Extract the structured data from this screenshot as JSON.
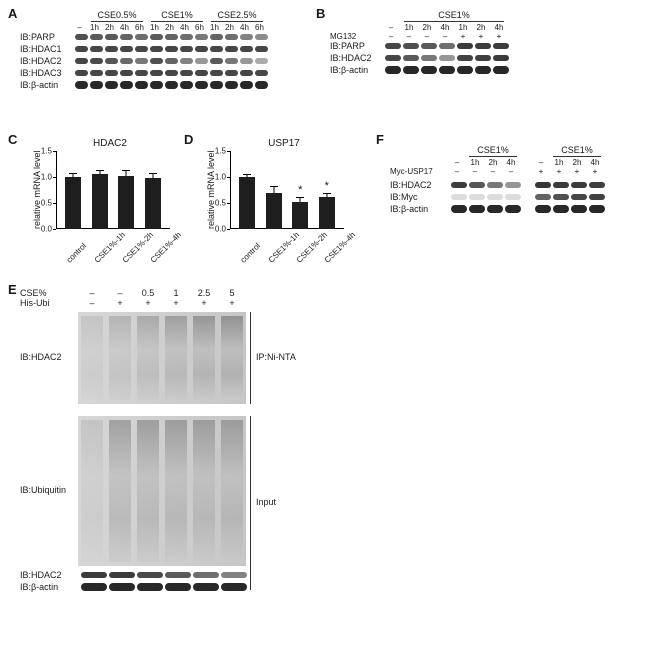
{
  "labels": {
    "A": "A",
    "B": "B",
    "C": "C",
    "D": "D",
    "E": "E",
    "F": "F"
  },
  "panelA": {
    "groups": [
      "CSE0.5%",
      "CSE1%",
      "CSE2.5%"
    ],
    "times": [
      "–",
      "1h",
      "2h",
      "4h",
      "6h",
      "1h",
      "2h",
      "4h",
      "6h",
      "1h",
      "2h",
      "4h",
      "6h"
    ],
    "rows": [
      {
        "label": "IB:PARP",
        "intensity": [
          0.75,
          0.7,
          0.7,
          0.65,
          0.6,
          0.7,
          0.65,
          0.6,
          0.55,
          0.65,
          0.6,
          0.5,
          0.45
        ],
        "thick": false
      },
      {
        "label": "IB:HDAC1",
        "intensity": [
          0.8,
          0.8,
          0.8,
          0.8,
          0.8,
          0.8,
          0.8,
          0.8,
          0.8,
          0.8,
          0.8,
          0.8,
          0.8
        ],
        "thick": false
      },
      {
        "label": "IB:HDAC2",
        "intensity": [
          0.8,
          0.78,
          0.72,
          0.62,
          0.55,
          0.75,
          0.65,
          0.5,
          0.4,
          0.7,
          0.55,
          0.4,
          0.3
        ],
        "thick": false
      },
      {
        "label": "IB:HDAC3",
        "intensity": [
          0.8,
          0.8,
          0.8,
          0.8,
          0.8,
          0.8,
          0.8,
          0.8,
          0.8,
          0.8,
          0.8,
          0.8,
          0.8
        ],
        "thick": false
      },
      {
        "label": "IB:β-actin",
        "intensity": [
          0.95,
          0.95,
          0.95,
          0.95,
          0.95,
          0.95,
          0.95,
          0.95,
          0.95,
          0.95,
          0.95,
          0.95,
          0.95
        ],
        "thick": true
      }
    ],
    "band_color": "#2e2e2e",
    "lane_width": 15
  },
  "panelB": {
    "group": "CSE1%",
    "times": [
      "–",
      "1h",
      "2h",
      "4h",
      "1h",
      "2h",
      "4h"
    ],
    "mg132": [
      "–",
      "–",
      "–",
      "–",
      "+",
      "+",
      "+"
    ],
    "mg132_label": "MG132",
    "rows": [
      {
        "label": "IB:PARP",
        "intensity": [
          0.8,
          0.75,
          0.7,
          0.6,
          0.85,
          0.85,
          0.85
        ],
        "thick": false
      },
      {
        "label": "IB:HDAC2",
        "intensity": [
          0.8,
          0.7,
          0.55,
          0.4,
          0.82,
          0.83,
          0.85
        ],
        "thick": false
      },
      {
        "label": "IB:β-actin",
        "intensity": [
          0.95,
          0.95,
          0.95,
          0.95,
          0.95,
          0.95,
          0.95
        ],
        "thick": true
      }
    ],
    "band_color": "#2e2e2e",
    "lane_width": 18
  },
  "panelC": {
    "title": "HDAC2",
    "y_label": "relative mRNA level",
    "ylim": [
      0,
      1.5
    ],
    "yticks": [
      0,
      0.5,
      1.0,
      1.5
    ],
    "bars": [
      {
        "x": "control",
        "y": 1.0,
        "err": 0.05,
        "star": false
      },
      {
        "x": "CSE1%-1h",
        "y": 1.05,
        "err": 0.07,
        "star": false
      },
      {
        "x": "CSE1%-2h",
        "y": 1.02,
        "err": 0.09,
        "star": false
      },
      {
        "x": "CSE1%-4h",
        "y": 0.98,
        "err": 0.08,
        "star": false
      }
    ],
    "bar_color": "#1e1e1e",
    "background": "#ffffff"
  },
  "panelD": {
    "title": "USP17",
    "y_label": "relative mRNA level",
    "ylim": [
      0,
      1.5
    ],
    "yticks": [
      0,
      0.5,
      1.0,
      1.5
    ],
    "bars": [
      {
        "x": "control",
        "y": 1.0,
        "err": 0.03,
        "star": false
      },
      {
        "x": "CSE1%-1h",
        "y": 0.7,
        "err": 0.1,
        "star": false
      },
      {
        "x": "CSE1%-2h",
        "y": 0.52,
        "err": 0.08,
        "star": true
      },
      {
        "x": "CSE1%-4h",
        "y": 0.62,
        "err": 0.06,
        "star": true
      }
    ],
    "bar_color": "#1e1e1e",
    "background": "#ffffff"
  },
  "panelE": {
    "header_cse": "CSE%",
    "header_ubi": "His-Ubi",
    "cse": [
      "–",
      "–",
      "0.5",
      "1",
      "2.5",
      "5"
    ],
    "ubi": [
      "–",
      "+",
      "+",
      "+",
      "+",
      "+"
    ],
    "upper": {
      "label": "IB:HDAC2",
      "side": "IP:Ni-NTA",
      "smear": [
        0.1,
        0.35,
        0.5,
        0.7,
        0.85,
        0.95
      ]
    },
    "middle": {
      "label": "IB:Ubiquitin",
      "side": "Input",
      "smear": [
        0.1,
        0.7,
        0.72,
        0.73,
        0.72,
        0.72
      ]
    },
    "bottom_rows": [
      {
        "label": "IB:HDAC2",
        "intensity": [
          0.85,
          0.85,
          0.78,
          0.7,
          0.6,
          0.5
        ],
        "thick": false
      },
      {
        "label": "IB:β-actin",
        "intensity": [
          0.95,
          0.95,
          0.95,
          0.95,
          0.95,
          0.95
        ],
        "thick": true
      }
    ],
    "lane_width": 28,
    "band_color": "#2b2b2b"
  },
  "panelF": {
    "group": "CSE1%",
    "times": [
      "–",
      "1h",
      "2h",
      "4h"
    ],
    "myc_label": "Myc-USP17",
    "myc_left": [
      "–",
      "–",
      "–",
      "–"
    ],
    "myc_right": [
      "+",
      "+",
      "+",
      "+"
    ],
    "rows": [
      {
        "label": "IB:HDAC2",
        "left": [
          0.85,
          0.72,
          0.55,
          0.4
        ],
        "right": [
          0.88,
          0.86,
          0.85,
          0.84
        ],
        "thick": false
      },
      {
        "label": "IB:Myc",
        "left": [
          0.05,
          0.05,
          0.05,
          0.05
        ],
        "right": [
          0.65,
          0.75,
          0.8,
          0.82
        ],
        "thick": false
      },
      {
        "label": "IB:β-actin",
        "left": [
          0.95,
          0.95,
          0.95,
          0.95
        ],
        "right": [
          0.95,
          0.95,
          0.95,
          0.95
        ],
        "thick": true
      }
    ],
    "band_color": "#2e2e2e",
    "lane_width": 18
  }
}
